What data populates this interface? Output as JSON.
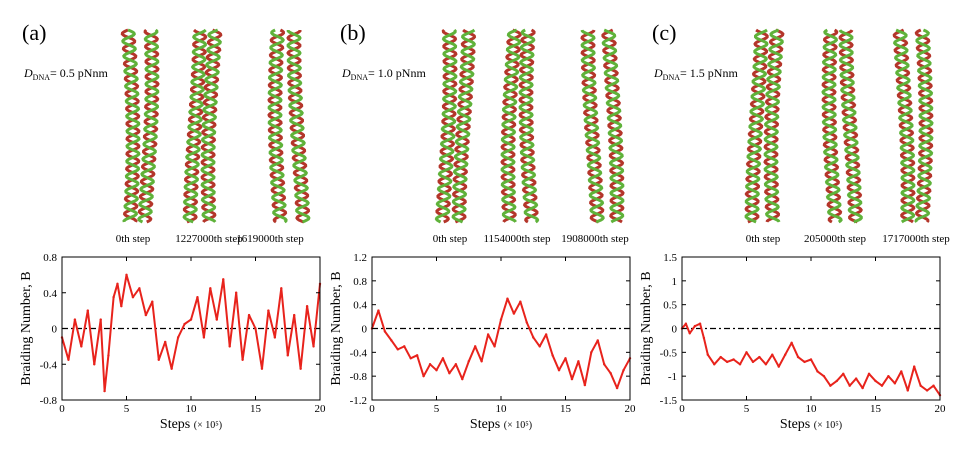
{
  "panels": [
    {
      "label": "(a)",
      "d_symbol": "D",
      "d_subscript": "DNA",
      "d_value": "= 0.5 pNnm",
      "snapshot_labels": [
        "0th step",
        "1227000th step",
        "1619000th step"
      ],
      "chart_data": {
        "type": "line",
        "xlabel": "Steps",
        "xunit": "(× 10⁵)",
        "ylabel": "Braiding Number, B",
        "xlim": [
          0,
          20
        ],
        "ylim": [
          -0.8,
          0.8
        ],
        "xticks": [
          0,
          5,
          10,
          15,
          20
        ],
        "yticks": [
          -0.8,
          -0.4,
          0,
          0.4,
          0.8
        ],
        "ytick_labels": [
          "-0.8",
          "-0.4",
          "0",
          "0.4",
          "0.8"
        ],
        "reference_line": 0,
        "series": [
          {
            "name": "B",
            "color": "#e8231c",
            "x": [
              0,
              0.5,
              1,
              1.5,
              2,
              2.5,
              3,
              3.3,
              3.6,
              4,
              4.3,
              4.6,
              5,
              5.5,
              6,
              6.5,
              7,
              7.5,
              8,
              8.5,
              9,
              9.5,
              10,
              10.5,
              11,
              11.5,
              12,
              12.5,
              13,
              13.5,
              14,
              14.5,
              15,
              15.5,
              16,
              16.5,
              17,
              17.5,
              18,
              18.5,
              19,
              19.5,
              20
            ],
            "y": [
              -0.1,
              -0.35,
              0.1,
              -0.2,
              0.2,
              -0.4,
              0.1,
              -0.7,
              -0.3,
              0.35,
              0.5,
              0.25,
              0.6,
              0.35,
              0.45,
              0.15,
              0.3,
              -0.35,
              -0.15,
              -0.45,
              -0.1,
              0.05,
              0.1,
              0.35,
              -0.1,
              0.45,
              0.1,
              0.55,
              -0.2,
              0.4,
              -0.35,
              0.15,
              0.0,
              -0.45,
              0.2,
              -0.1,
              0.45,
              -0.3,
              0.15,
              -0.45,
              0.25,
              -0.2,
              0.5
            ]
          }
        ]
      }
    },
    {
      "label": "(b)",
      "d_symbol": "D",
      "d_subscript": "DNA",
      "d_value": "= 1.0 pNnm",
      "snapshot_labels": [
        "0th step",
        "1154000th step",
        "1908000th step"
      ],
      "chart_data": {
        "type": "line",
        "xlabel": "Steps",
        "xunit": "(× 10⁵)",
        "ylabel": "Braiding Number, B",
        "xlim": [
          0,
          20
        ],
        "ylim": [
          -1.2,
          1.2
        ],
        "xticks": [
          0,
          5,
          10,
          15,
          20
        ],
        "yticks": [
          -1.2,
          -0.8,
          -0.4,
          0,
          0.4,
          0.8,
          1.2
        ],
        "ytick_labels": [
          "-1.2",
          "-0.8",
          "-0.4",
          "0",
          "0.4",
          "0.8",
          "1.2"
        ],
        "reference_line": 0,
        "series": [
          {
            "name": "B",
            "color": "#e8231c",
            "x": [
              0,
              0.5,
              1,
              1.5,
              2,
              2.5,
              3,
              3.5,
              4,
              4.5,
              5,
              5.5,
              6,
              6.5,
              7,
              7.5,
              8,
              8.5,
              9,
              9.5,
              10,
              10.5,
              11,
              11.5,
              12,
              12.5,
              13,
              13.5,
              14,
              14.5,
              15,
              15.5,
              16,
              16.5,
              17,
              17.5,
              18,
              18.5,
              19,
              19.5,
              20
            ],
            "y": [
              0.0,
              0.3,
              -0.05,
              -0.2,
              -0.35,
              -0.3,
              -0.5,
              -0.45,
              -0.8,
              -0.6,
              -0.7,
              -0.5,
              -0.75,
              -0.6,
              -0.85,
              -0.55,
              -0.3,
              -0.55,
              -0.1,
              -0.3,
              0.15,
              0.5,
              0.25,
              0.45,
              0.1,
              -0.15,
              -0.3,
              -0.1,
              -0.45,
              -0.7,
              -0.5,
              -0.85,
              -0.55,
              -0.95,
              -0.4,
              -0.2,
              -0.6,
              -0.75,
              -1.0,
              -0.7,
              -0.5
            ]
          }
        ]
      }
    },
    {
      "label": "(c)",
      "d_symbol": "D",
      "d_subscript": "DNA",
      "d_value": "= 1.5 pNnm",
      "snapshot_labels": [
        "0th step",
        "205000th step",
        "1717000th step"
      ],
      "chart_data": {
        "type": "line",
        "xlabel": "Steps",
        "xunit": "(× 10⁵)",
        "ylabel": "Braiding Number, B",
        "xlim": [
          0,
          20
        ],
        "ylim": [
          -1.5,
          1.5
        ],
        "xticks": [
          0,
          5,
          10,
          15,
          20
        ],
        "yticks": [
          -1.5,
          -1,
          -0.5,
          0,
          0.5,
          1,
          1.5
        ],
        "ytick_labels": [
          "-1.5",
          "-1",
          "-0.5",
          "0",
          "0.5",
          "1",
          "1.5"
        ],
        "reference_line": 0,
        "series": [
          {
            "name": "B",
            "color": "#e8231c",
            "x": [
              0,
              0.3,
              0.6,
              1,
              1.4,
              1.7,
              2,
              2.5,
              3,
              3.5,
              4,
              4.5,
              5,
              5.5,
              6,
              6.5,
              7,
              7.5,
              8,
              8.5,
              9,
              9.5,
              10,
              10.5,
              11,
              11.5,
              12,
              12.5,
              13,
              13.5,
              14,
              14.5,
              15,
              15.5,
              16,
              16.5,
              17,
              17.5,
              18,
              18.5,
              19,
              19.5,
              20
            ],
            "y": [
              0.0,
              0.1,
              -0.1,
              0.05,
              0.1,
              -0.2,
              -0.55,
              -0.75,
              -0.6,
              -0.7,
              -0.65,
              -0.75,
              -0.5,
              -0.7,
              -0.6,
              -0.75,
              -0.55,
              -0.8,
              -0.55,
              -0.3,
              -0.6,
              -0.7,
              -0.65,
              -0.9,
              -1.0,
              -1.2,
              -1.1,
              -0.95,
              -1.2,
              -1.05,
              -1.25,
              -0.95,
              -1.1,
              -1.2,
              -1.0,
              -1.15,
              -0.9,
              -1.3,
              -0.8,
              -1.2,
              -1.3,
              -1.2,
              -1.4
            ]
          }
        ]
      }
    }
  ]
}
